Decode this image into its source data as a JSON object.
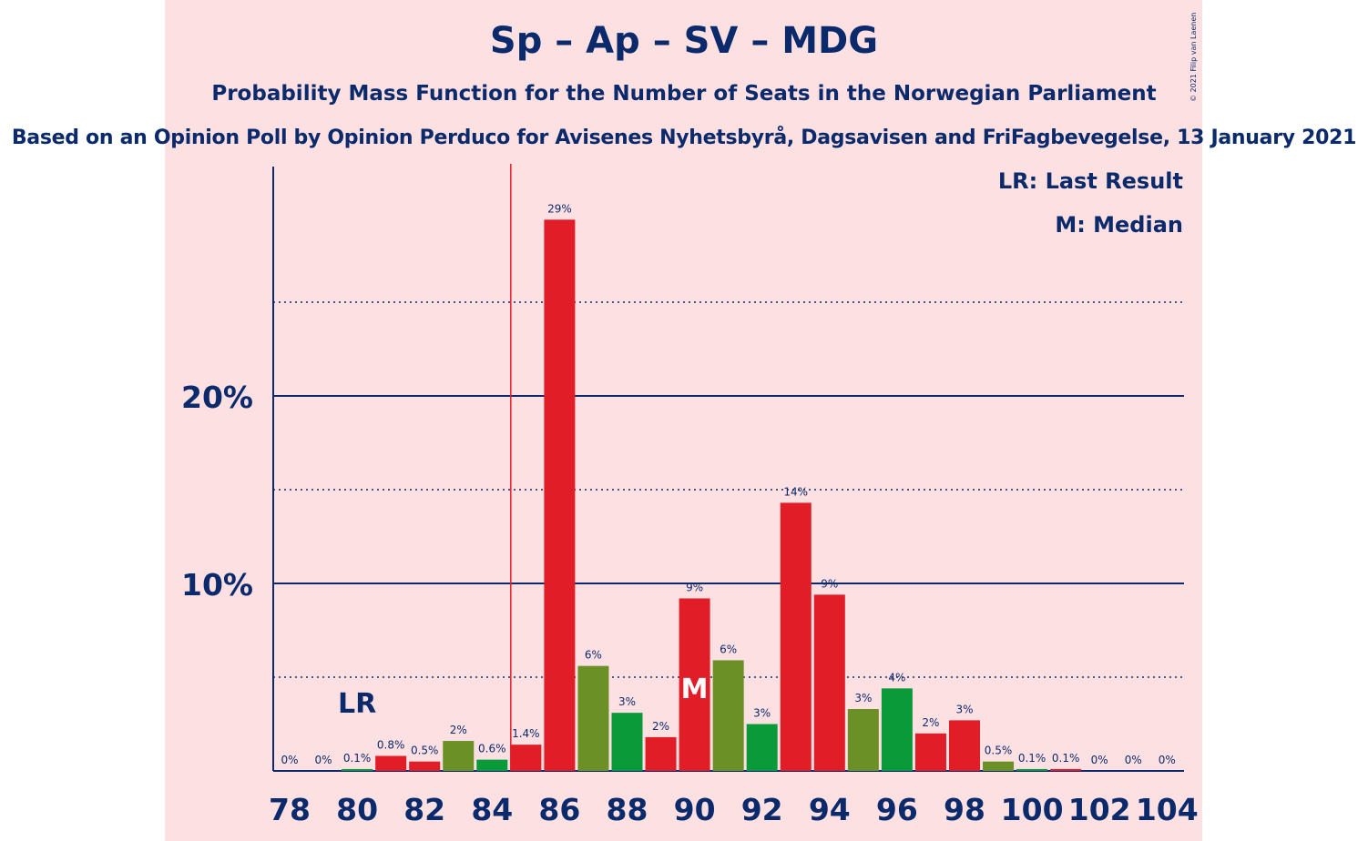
{
  "header": {
    "title": "Sp – Ap – SV – MDG",
    "subtitle": "Probability Mass Function for the Number of Seats in the Norwegian Parliament",
    "source": "Based on an Opinion Poll by Opinion Perduco for Avisenes Nyhetsbyrå, Dagsavisen and FriFagbevegelse, 13 January 2021"
  },
  "legend": {
    "last_result": "LR: Last Result",
    "median": "M: Median"
  },
  "copyright": "© 2021 Filip van Laenen",
  "colors": {
    "background": "#fde0e2",
    "text": "#0b2a6b",
    "sp_green": "#6b9126",
    "ap_red": "#e11d27",
    "mdg_green": "#0a9a3a",
    "majority_line": "#e8202a"
  },
  "chart_data": {
    "type": "bar",
    "x": [
      78,
      79,
      80,
      81,
      82,
      83,
      84,
      85,
      86,
      87,
      88,
      89,
      90,
      91,
      92,
      93,
      94,
      95,
      96,
      97,
      98,
      99,
      100,
      101,
      102,
      103,
      104
    ],
    "values": [
      0,
      0,
      0.1,
      0.8,
      0.5,
      1.6,
      0.6,
      1.4,
      29.4,
      5.6,
      3.1,
      1.8,
      9.2,
      5.9,
      2.5,
      14.3,
      9.4,
      3.3,
      4.4,
      2.0,
      2.7,
      0.5,
      0.1,
      0.1,
      0,
      0,
      0
    ],
    "value_labels": [
      "0%",
      "0%",
      "0.1%",
      "0.8%",
      "0.5%",
      "2%",
      "0.6%",
      "1.4%",
      "29%",
      "6%",
      "3%",
      "2%",
      "9%",
      "6%",
      "3%",
      "14%",
      "9%",
      "3%",
      "4%",
      "2%",
      "3%",
      "0.5%",
      "0.1%",
      "0.1%",
      "0%",
      "0%",
      "0%"
    ],
    "bar_colors": [
      "#e11d27",
      "#6b9126",
      "#0a9a3a",
      "#e11d27",
      "#e11d27",
      "#6b9126",
      "#0a9a3a",
      "#e11d27",
      "#e11d27",
      "#6b9126",
      "#0a9a3a",
      "#e11d27",
      "#e11d27",
      "#6b9126",
      "#0a9a3a",
      "#e11d27",
      "#e11d27",
      "#6b9126",
      "#0a9a3a",
      "#e11d27",
      "#e11d27",
      "#6b9126",
      "#0a9a3a",
      "#e11d27",
      "#e11d27",
      "#6b9126",
      "#0a9a3a"
    ],
    "x_tick_labels": [
      "78",
      "80",
      "82",
      "84",
      "86",
      "88",
      "90",
      "92",
      "94",
      "96",
      "98",
      "100",
      "102",
      "104"
    ],
    "y_ticks": [
      {
        "value": 10,
        "label": "10%"
      },
      {
        "value": 20,
        "label": "20%"
      }
    ],
    "y_minor_gridlines": [
      5,
      15,
      25
    ],
    "ylim": [
      0,
      32
    ],
    "majority_threshold_seats": 85,
    "last_result_seats": 80,
    "last_result_label": "LR",
    "median_seats": 90,
    "median_label": "M"
  }
}
